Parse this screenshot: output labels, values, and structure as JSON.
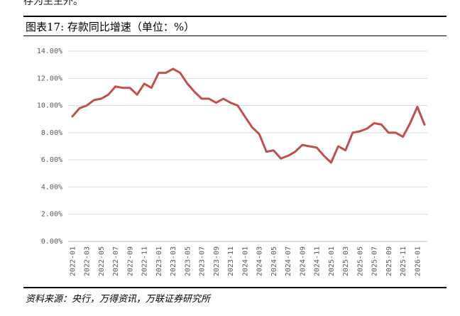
{
  "header_fragment": "存为生主外。",
  "chart_data": {
    "type": "line",
    "title": "图表17: 存款同比增速（单位：%）",
    "source": "资料来源：央行，万得资讯，万联证券研究所",
    "ylim": [
      0,
      14
    ],
    "yticks": [
      0,
      2,
      4,
      6,
      8,
      10,
      12,
      14
    ],
    "ytick_labels": [
      "0.00%",
      "2.00%",
      "4.00%",
      "6.00%",
      "8.00%",
      "10.00%",
      "12.00%",
      "14.00%"
    ],
    "grid": true,
    "line_color": "#C0504D",
    "x": [
      "2022-01",
      "2022-02",
      "2022-03",
      "2022-04",
      "2022-05",
      "2022-06",
      "2022-07",
      "2022-08",
      "2022-09",
      "2022-10",
      "2022-11",
      "2022-12",
      "2023-01",
      "2023-02",
      "2023-03",
      "2023-04",
      "2023-05",
      "2023-06",
      "2023-07",
      "2023-08",
      "2023-09",
      "2023-10",
      "2023-11",
      "2023-12",
      "2024-01",
      "2024-02",
      "2024-03",
      "2024-04",
      "2024-05",
      "2024-06",
      "2024-07",
      "2024-08",
      "2024-09",
      "2024-10",
      "2024-11",
      "2024-12",
      "2025-01",
      "2025-02",
      "2025-03",
      "2025-04",
      "2025-05",
      "2025-06",
      "2025-07",
      "2025-08",
      "2025-09",
      "2025-10",
      "2025-11",
      "2025-12",
      "2026-01",
      "2026-02"
    ],
    "xtick_labels": [
      "2022-01",
      "2022-03",
      "2022-05",
      "2022-07",
      "2022-09",
      "2022-11",
      "2023-01",
      "2023-03",
      "2023-05",
      "2023-07",
      "2023-09",
      "2023-11",
      "2024-01",
      "2024-03",
      "2024-05",
      "2024-07",
      "2024-09",
      "2024-11",
      "2025-01",
      "2025-03",
      "2025-05",
      "2025-07",
      "2025-09",
      "2025-11",
      "2026-01"
    ],
    "series": [
      {
        "values": [
          9.2,
          9.8,
          10.0,
          10.4,
          10.5,
          10.8,
          11.4,
          11.3,
          11.3,
          10.8,
          11.6,
          11.3,
          12.4,
          12.4,
          12.7,
          12.4,
          11.6,
          11.0,
          10.5,
          10.5,
          10.2,
          10.5,
          10.2,
          10.0,
          9.2,
          8.4,
          7.9,
          6.6,
          6.7,
          6.1,
          6.3,
          6.6,
          7.1,
          7.0,
          6.9,
          6.3,
          5.8,
          7.0,
          6.7,
          8.0,
          8.1,
          8.3,
          8.7,
          8.6,
          8.0,
          8.0,
          7.7,
          8.7,
          9.9,
          8.6
        ]
      }
    ]
  }
}
